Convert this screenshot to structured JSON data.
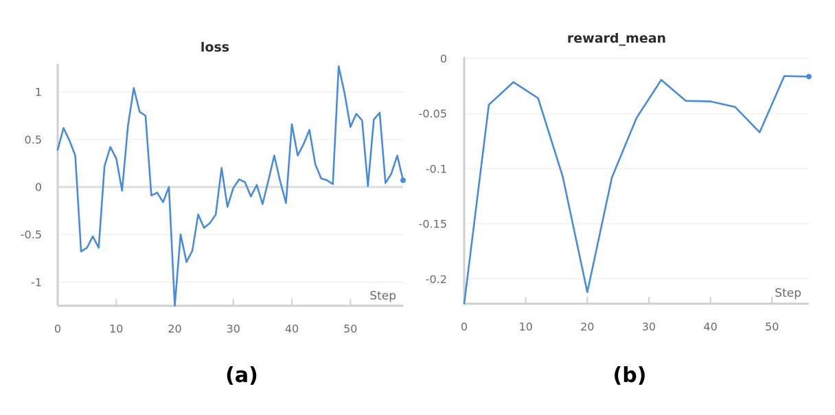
{
  "colors": {
    "series": "#4a8bd6"
  },
  "chart_data": [
    {
      "type": "line",
      "title": "loss",
      "xlabel": "Step",
      "panel_label": "(a)",
      "xlim": [
        0,
        59
      ],
      "ylim": [
        -1.25,
        1.28
      ],
      "x_ticks": [
        0,
        10,
        20,
        30,
        40,
        50
      ],
      "y_ticks": [
        -1,
        -0.5,
        0,
        0.5,
        1
      ],
      "y_tick_labels": [
        "-1",
        "-0.5",
        "0",
        "0.5",
        "1"
      ],
      "zero_line": true,
      "grid": true,
      "end_marker": true,
      "series": [
        {
          "x": [
            0,
            1,
            2,
            3,
            4,
            5,
            6,
            7,
            8,
            9,
            10,
            11,
            12,
            13,
            14,
            15,
            16,
            17,
            18,
            19,
            20,
            21,
            22,
            23,
            24,
            25,
            26,
            27,
            28,
            29,
            30,
            31,
            32,
            33,
            34,
            35,
            36,
            37,
            38,
            39,
            40,
            41,
            42,
            43,
            44,
            45,
            46,
            47,
            48,
            49,
            50,
            51,
            52,
            53,
            54,
            55,
            56,
            57,
            58,
            59
          ],
          "y": [
            0.39,
            0.62,
            0.49,
            0.33,
            -0.68,
            -0.64,
            -0.52,
            -0.64,
            0.22,
            0.42,
            0.3,
            -0.04,
            0.64,
            1.04,
            0.79,
            0.75,
            -0.09,
            -0.06,
            -0.16,
            0.0,
            -1.25,
            -0.5,
            -0.79,
            -0.67,
            -0.29,
            -0.43,
            -0.38,
            -0.29,
            0.2,
            -0.21,
            -0.01,
            0.08,
            0.05,
            -0.1,
            0.02,
            -0.18,
            0.07,
            0.33,
            0.06,
            -0.17,
            0.66,
            0.33,
            0.45,
            0.6,
            0.24,
            0.09,
            0.07,
            0.03,
            1.27,
            0.99,
            0.63,
            0.77,
            0.7,
            0.01,
            0.71,
            0.78,
            0.04,
            0.14,
            0.33,
            0.07
          ]
        }
      ]
    },
    {
      "type": "line",
      "title": "reward_mean",
      "xlabel": "Step",
      "panel_label": "(b)",
      "xlim": [
        0,
        56
      ],
      "ylim": [
        -0.2225,
        0
      ],
      "x_ticks": [
        0,
        10,
        20,
        30,
        40,
        50
      ],
      "y_ticks": [
        0,
        -0.05,
        -0.1,
        -0.15,
        -0.2
      ],
      "y_tick_labels": [
        "0",
        "-0.05",
        "-0.1",
        "-0.15",
        "-0.2"
      ],
      "zero_line": false,
      "grid": true,
      "end_marker": true,
      "series": [
        {
          "x": [
            0,
            4,
            8,
            12,
            16,
            20,
            24,
            28,
            32,
            36,
            40,
            44,
            48,
            52,
            56
          ],
          "y": [
            -0.2225,
            -0.042,
            -0.0215,
            -0.036,
            -0.107,
            -0.212,
            -0.108,
            -0.054,
            -0.0195,
            -0.0385,
            -0.039,
            -0.044,
            -0.067,
            -0.016,
            -0.0165
          ]
        }
      ]
    }
  ]
}
